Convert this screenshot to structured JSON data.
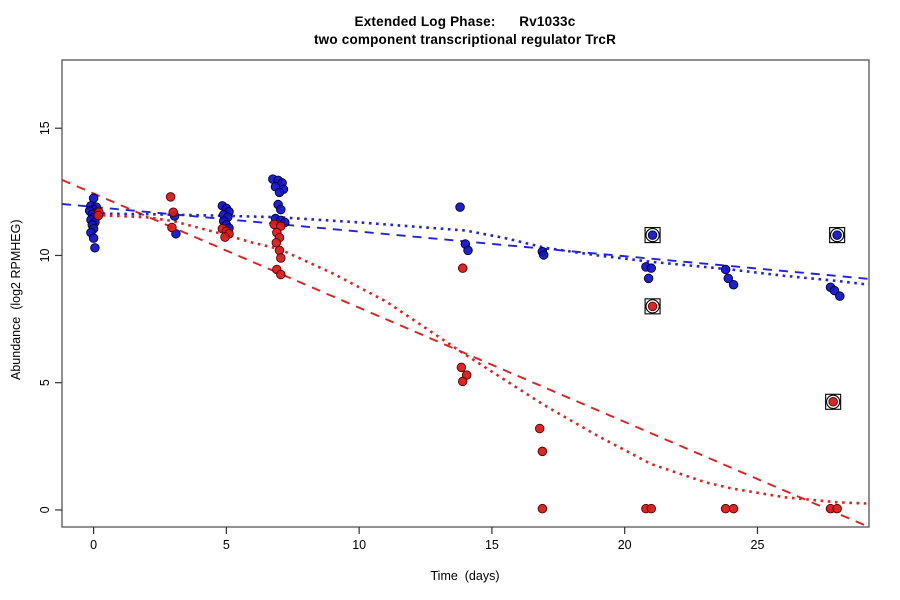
{
  "window": {
    "background": "#ffffff"
  },
  "chart_data": {
    "type": "scatter",
    "title_line1": "Extended Log Phase:      Rv1033c",
    "title_line2": "two component transcriptional regulator TrcR",
    "xlabel": "Time  (days)",
    "ylabel": "Abundance  (log2 RPMHEG)",
    "x_ticks": [
      0,
      5,
      10,
      15,
      20,
      25
    ],
    "y_ticks": [
      0,
      5,
      10,
      15
    ],
    "xlim": [
      -1.19,
      29.2
    ],
    "ylim": [
      -0.67,
      17.68
    ],
    "grid": false,
    "legend": "none",
    "colors": {
      "blue_point_fill": "#1414cc",
      "blue_point_stroke": "#000033",
      "red_point_fill": "#dd1a1a",
      "red_point_stroke": "#550000",
      "blue_line": "#2222dd",
      "red_line": "#e02020",
      "box_stroke": "#555555",
      "flag_ring": "#000000"
    },
    "series": [
      {
        "name": "blue-points",
        "marker": "dot",
        "color_key": "blue",
        "points": [
          [
            0.0,
            12.25
          ],
          [
            -0.1,
            11.95
          ],
          [
            0.1,
            11.9
          ],
          [
            0.0,
            11.8
          ],
          [
            -0.15,
            11.75
          ],
          [
            0.1,
            11.7
          ],
          [
            -0.05,
            11.62
          ],
          [
            0.15,
            11.55
          ],
          [
            0.0,
            11.48
          ],
          [
            -0.1,
            11.4
          ],
          [
            0.05,
            11.3
          ],
          [
            -0.05,
            11.2
          ],
          [
            0.0,
            11.05
          ],
          [
            -0.1,
            10.9
          ],
          [
            0.0,
            10.68
          ],
          [
            0.05,
            10.3
          ],
          [
            3.05,
            11.55
          ],
          [
            3.1,
            10.85
          ],
          [
            4.85,
            11.95
          ],
          [
            5.0,
            11.85
          ],
          [
            5.1,
            11.72
          ],
          [
            4.9,
            11.6
          ],
          [
            5.05,
            11.5
          ],
          [
            4.9,
            11.35
          ],
          [
            5.0,
            11.2
          ],
          [
            5.1,
            11.08
          ],
          [
            6.75,
            13.0
          ],
          [
            6.95,
            12.95
          ],
          [
            7.1,
            12.85
          ],
          [
            6.85,
            12.7
          ],
          [
            7.15,
            12.6
          ],
          [
            7.0,
            12.48
          ],
          [
            6.95,
            12.0
          ],
          [
            7.05,
            11.8
          ],
          [
            6.85,
            11.45
          ],
          [
            7.05,
            11.38
          ],
          [
            7.2,
            11.3
          ],
          [
            13.8,
            11.9
          ],
          [
            14.0,
            10.45
          ],
          [
            14.1,
            10.2
          ],
          [
            16.9,
            10.15
          ],
          [
            16.95,
            10.02
          ],
          [
            20.8,
            9.55
          ],
          [
            21.0,
            9.5
          ],
          [
            20.9,
            9.1
          ],
          [
            23.8,
            9.45
          ],
          [
            23.9,
            9.1
          ],
          [
            24.1,
            8.85
          ],
          [
            27.75,
            8.75
          ],
          [
            27.9,
            8.62
          ],
          [
            28.1,
            8.4
          ]
        ]
      },
      {
        "name": "red-points",
        "marker": "dot",
        "color_key": "red",
        "points": [
          [
            0.2,
            11.7
          ],
          [
            0.18,
            11.57
          ],
          [
            2.9,
            12.3
          ],
          [
            3.0,
            11.7
          ],
          [
            2.95,
            11.1
          ],
          [
            4.85,
            11.05
          ],
          [
            5.0,
            10.95
          ],
          [
            5.1,
            10.85
          ],
          [
            4.95,
            10.72
          ],
          [
            6.8,
            11.22
          ],
          [
            7.05,
            11.15
          ],
          [
            6.9,
            10.9
          ],
          [
            7.0,
            10.7
          ],
          [
            6.88,
            10.5
          ],
          [
            7.0,
            10.2
          ],
          [
            7.05,
            9.9
          ],
          [
            6.9,
            9.45
          ],
          [
            7.05,
            9.25
          ],
          [
            13.9,
            9.5
          ],
          [
            13.85,
            5.6
          ],
          [
            14.05,
            5.3
          ],
          [
            13.9,
            5.05
          ],
          [
            16.8,
            3.2
          ],
          [
            16.9,
            2.3
          ],
          [
            16.9,
            0.05
          ],
          [
            20.8,
            0.05
          ],
          [
            21.0,
            0.05
          ],
          [
            23.8,
            0.05
          ],
          [
            24.1,
            0.05
          ],
          [
            27.75,
            0.05
          ],
          [
            28.0,
            0.05
          ]
        ]
      },
      {
        "name": "blue-flagged-points",
        "marker": "dot-circle-square",
        "color_key": "blue",
        "points": [
          [
            21.05,
            10.8
          ],
          [
            28.0,
            10.8
          ]
        ]
      },
      {
        "name": "red-flagged-points",
        "marker": "dot-circle-square",
        "color_key": "red",
        "points": [
          [
            21.05,
            8.0
          ],
          [
            27.85,
            4.25
          ]
        ]
      }
    ],
    "lines": [
      {
        "name": "blue-regression-line",
        "color_key": "blue",
        "style": "dashed",
        "points": [
          [
            -1.19,
            12.02
          ],
          [
            29.2,
            9.08
          ]
        ]
      },
      {
        "name": "red-regression-line",
        "color_key": "red",
        "style": "dashed",
        "points": [
          [
            -1.19,
            12.97
          ],
          [
            29.2,
            -0.67
          ]
        ]
      },
      {
        "name": "blue-lowess-line",
        "color_key": "blue",
        "style": "dotted",
        "points": [
          [
            -0.2,
            11.65
          ],
          [
            2,
            11.62
          ],
          [
            5,
            11.56
          ],
          [
            7,
            11.5
          ],
          [
            10,
            11.3
          ],
          [
            14,
            10.98
          ],
          [
            15.5,
            10.68
          ],
          [
            17,
            10.3
          ],
          [
            19,
            10.0
          ],
          [
            21,
            9.75
          ],
          [
            24,
            9.45
          ],
          [
            26,
            9.2
          ],
          [
            28,
            9.0
          ],
          [
            29.2,
            8.85
          ]
        ]
      },
      {
        "name": "red-lowess-line",
        "color_key": "red",
        "style": "dotted",
        "points": [
          [
            -0.2,
            11.6
          ],
          [
            2,
            11.5
          ],
          [
            3,
            11.35
          ],
          [
            5,
            10.8
          ],
          [
            6,
            10.5
          ],
          [
            7,
            10.25
          ],
          [
            9,
            9.3
          ],
          [
            11,
            8.2
          ],
          [
            14,
            6.1
          ],
          [
            17,
            4.1
          ],
          [
            19,
            2.9
          ],
          [
            21,
            1.8
          ],
          [
            23,
            1.1
          ],
          [
            24,
            0.85
          ],
          [
            26,
            0.5
          ],
          [
            28,
            0.3
          ],
          [
            29.2,
            0.25
          ]
        ]
      }
    ]
  }
}
